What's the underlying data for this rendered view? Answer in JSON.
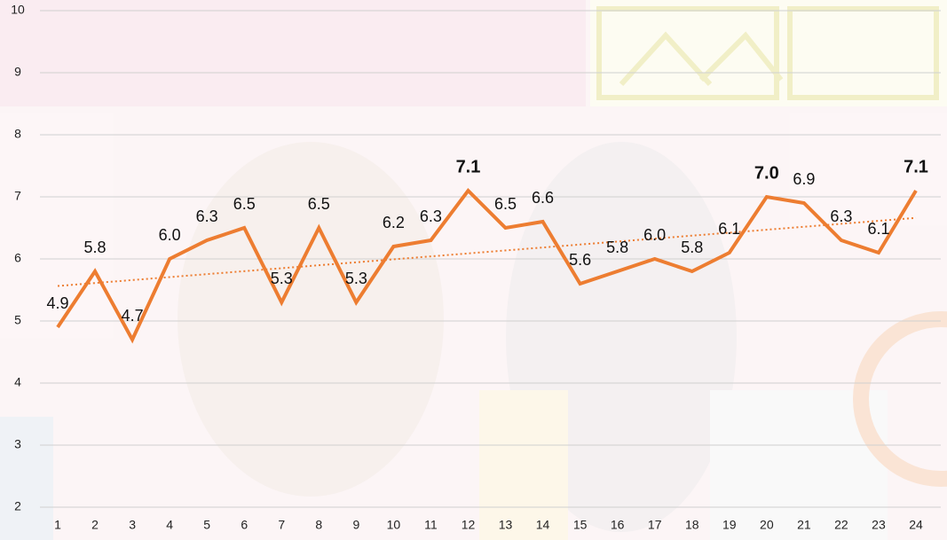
{
  "chart_data": {
    "type": "line",
    "categories": [
      "1",
      "2",
      "3",
      "4",
      "5",
      "6",
      "7",
      "8",
      "9",
      "10",
      "11",
      "12",
      "13",
      "14",
      "15",
      "16",
      "17",
      "18",
      "19",
      "20",
      "21",
      "22",
      "23",
      "24"
    ],
    "values": [
      4.9,
      5.8,
      4.7,
      6.0,
      6.3,
      6.5,
      5.3,
      6.5,
      5.3,
      6.2,
      6.3,
      7.1,
      6.5,
      6.6,
      5.6,
      5.8,
      6.0,
      5.8,
      6.1,
      7.0,
      6.9,
      6.3,
      6.1,
      7.1
    ],
    "value_labels": [
      "4.9",
      "5.8",
      "4.7",
      "6.0",
      "6.3",
      "6.5",
      "5.3",
      "6.5",
      "5.3",
      "6.2",
      "6.3",
      "7.1",
      "6.5",
      "6.6",
      "5.6",
      "5.8",
      "6.0",
      "5.8",
      "6.1",
      "7.0",
      "6.9",
      "6.3",
      "6.1",
      "7.1"
    ],
    "color": "#ed7d31",
    "highlight_categories": [
      "12",
      "20",
      "24"
    ],
    "highlight_color": "#e00000",
    "trendline": true,
    "ylim": [
      2,
      10
    ],
    "yticks": [
      2,
      3,
      4,
      5,
      6,
      7,
      8,
      9,
      10
    ],
    "grid": true
  }
}
